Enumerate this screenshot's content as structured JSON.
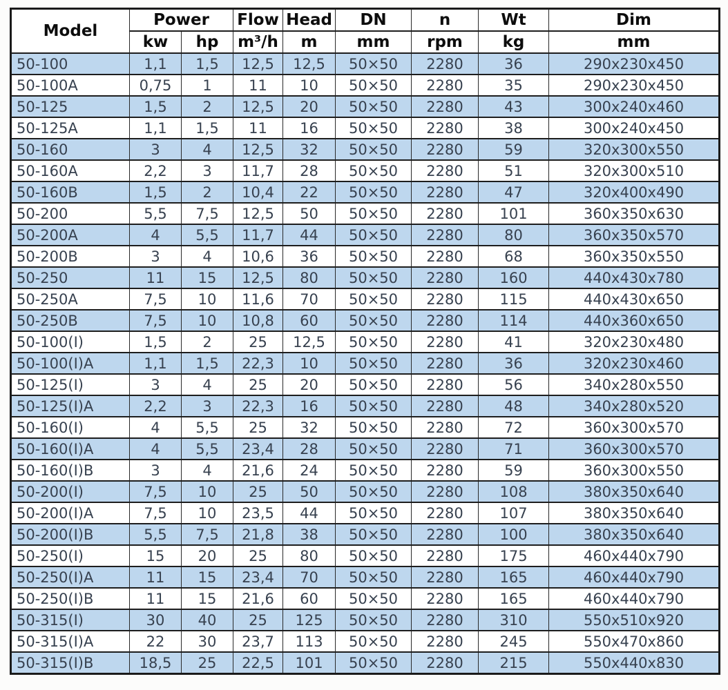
{
  "colors": {
    "row_blue": "#bed7ee",
    "row_white": "#ffffff",
    "border_dark": "#1d1d1d",
    "header_text": "#0d0d0d",
    "data_text": "#37414f",
    "page_background": "#fcfcfb"
  },
  "chart_data": {
    "type": "table",
    "header": {
      "groups": [
        {
          "label": "Model",
          "colspan": 1,
          "rowspan": 2
        },
        {
          "label": "Power",
          "colspan": 2,
          "rowspan": 1
        },
        {
          "label": "Flow",
          "colspan": 1,
          "rowspan": 1
        },
        {
          "label": "Head",
          "colspan": 1,
          "rowspan": 1
        },
        {
          "label": "DN",
          "colspan": 1,
          "rowspan": 1
        },
        {
          "label": "n",
          "colspan": 1,
          "rowspan": 1
        },
        {
          "label": "Wt",
          "colspan": 1,
          "rowspan": 1
        },
        {
          "label": "Dim",
          "colspan": 1,
          "rowspan": 1
        }
      ],
      "units": [
        "kw",
        "hp",
        "m³/h",
        "m",
        "mm",
        "rpm",
        "kg",
        "mm"
      ]
    },
    "columns": [
      "Model",
      "Power kw",
      "Power hp",
      "Flow m³/h",
      "Head m",
      "DN mm",
      "n rpm",
      "Wt kg",
      "Dim mm"
    ],
    "rows": [
      [
        "50-100",
        "1,1",
        "1,5",
        "12,5",
        "12,5",
        "50×50",
        "2280",
        "36",
        "290x230x450"
      ],
      [
        "50-100A",
        "0,75",
        "1",
        "11",
        "10",
        "50×50",
        "2280",
        "35",
        "290x230x450"
      ],
      [
        "50-125",
        "1,5",
        "2",
        "12,5",
        "20",
        "50×50",
        "2280",
        "43",
        "300x240x460"
      ],
      [
        "50-125A",
        "1,1",
        "1,5",
        "11",
        "16",
        "50×50",
        "2280",
        "38",
        "300x240x450"
      ],
      [
        "50-160",
        "3",
        "4",
        "12,5",
        "32",
        "50×50",
        "2280",
        "59",
        "320x300x550"
      ],
      [
        "50-160A",
        "2,2",
        "3",
        "11,7",
        "28",
        "50×50",
        "2280",
        "51",
        "320x300x510"
      ],
      [
        "50-160B",
        "1,5",
        "2",
        "10,4",
        "22",
        "50×50",
        "2280",
        "47",
        "320x400x490"
      ],
      [
        "50-200",
        "5,5",
        "7,5",
        "12,5",
        "50",
        "50×50",
        "2280",
        "101",
        "360x350x630"
      ],
      [
        "50-200A",
        "4",
        "5,5",
        "11,7",
        "44",
        "50×50",
        "2280",
        "80",
        "360x350x570"
      ],
      [
        "50-200B",
        "3",
        "4",
        "10,6",
        "36",
        "50×50",
        "2280",
        "68",
        "360x350x550"
      ],
      [
        "50-250",
        "11",
        "15",
        "12,5",
        "80",
        "50×50",
        "2280",
        "160",
        "440x430x780"
      ],
      [
        "50-250A",
        "7,5",
        "10",
        "11,6",
        "70",
        "50×50",
        "2280",
        "115",
        "440x430x650"
      ],
      [
        "50-250B",
        "7,5",
        "10",
        "10,8",
        "60",
        "50×50",
        "2280",
        "114",
        "440x360x650"
      ],
      [
        "50-100(I)",
        "1,5",
        "2",
        "25",
        "12,5",
        "50×50",
        "2280",
        "41",
        "320x230x480"
      ],
      [
        "50-100(I)A",
        "1,1",
        "1,5",
        "22,3",
        "10",
        "50×50",
        "2280",
        "36",
        "320x230x460"
      ],
      [
        "50-125(I)",
        "3",
        "4",
        "25",
        "20",
        "50×50",
        "2280",
        "56",
        "340x280x550"
      ],
      [
        "50-125(I)A",
        "2,2",
        "3",
        "22,3",
        "16",
        "50×50",
        "2280",
        "48",
        "340x280x520"
      ],
      [
        "50-160(I)",
        "4",
        "5,5",
        "25",
        "32",
        "50×50",
        "2280",
        "72",
        "360x300x570"
      ],
      [
        "50-160(I)A",
        "4",
        "5,5",
        "23,4",
        "28",
        "50×50",
        "2280",
        "71",
        "360x300x570"
      ],
      [
        "50-160(I)B",
        "3",
        "4",
        "21,6",
        "24",
        "50×50",
        "2280",
        "59",
        "360x300x550"
      ],
      [
        "50-200(I)",
        "7,5",
        "10",
        "25",
        "50",
        "50×50",
        "2280",
        "108",
        "380x350x640"
      ],
      [
        "50-200(I)A",
        "7,5",
        "10",
        "23,5",
        "44",
        "50×50",
        "2280",
        "107",
        "380x350x640"
      ],
      [
        "50-200(I)B",
        "5,5",
        "7,5",
        "21,8",
        "38",
        "50×50",
        "2280",
        "100",
        "380x350x640"
      ],
      [
        "50-250(I)",
        "15",
        "20",
        "25",
        "80",
        "50×50",
        "2280",
        "175",
        "460x440x790"
      ],
      [
        "50-250(I)A",
        "11",
        "15",
        "23,4",
        "70",
        "50×50",
        "2280",
        "165",
        "460x440x790"
      ],
      [
        "50-250(I)B",
        "11",
        "15",
        "21,6",
        "60",
        "50×50",
        "2280",
        "165",
        "460x440x790"
      ],
      [
        "50-315(I)",
        "30",
        "40",
        "25",
        "125",
        "50×50",
        "2280",
        "310",
        "550x510x920"
      ],
      [
        "50-315(I)A",
        "22",
        "30",
        "23,7",
        "113",
        "50×50",
        "2280",
        "245",
        "550x470x860"
      ],
      [
        "50-315(I)B",
        "18,5",
        "25",
        "22,5",
        "101",
        "50×50",
        "2280",
        "215",
        "550x440x830"
      ]
    ]
  }
}
